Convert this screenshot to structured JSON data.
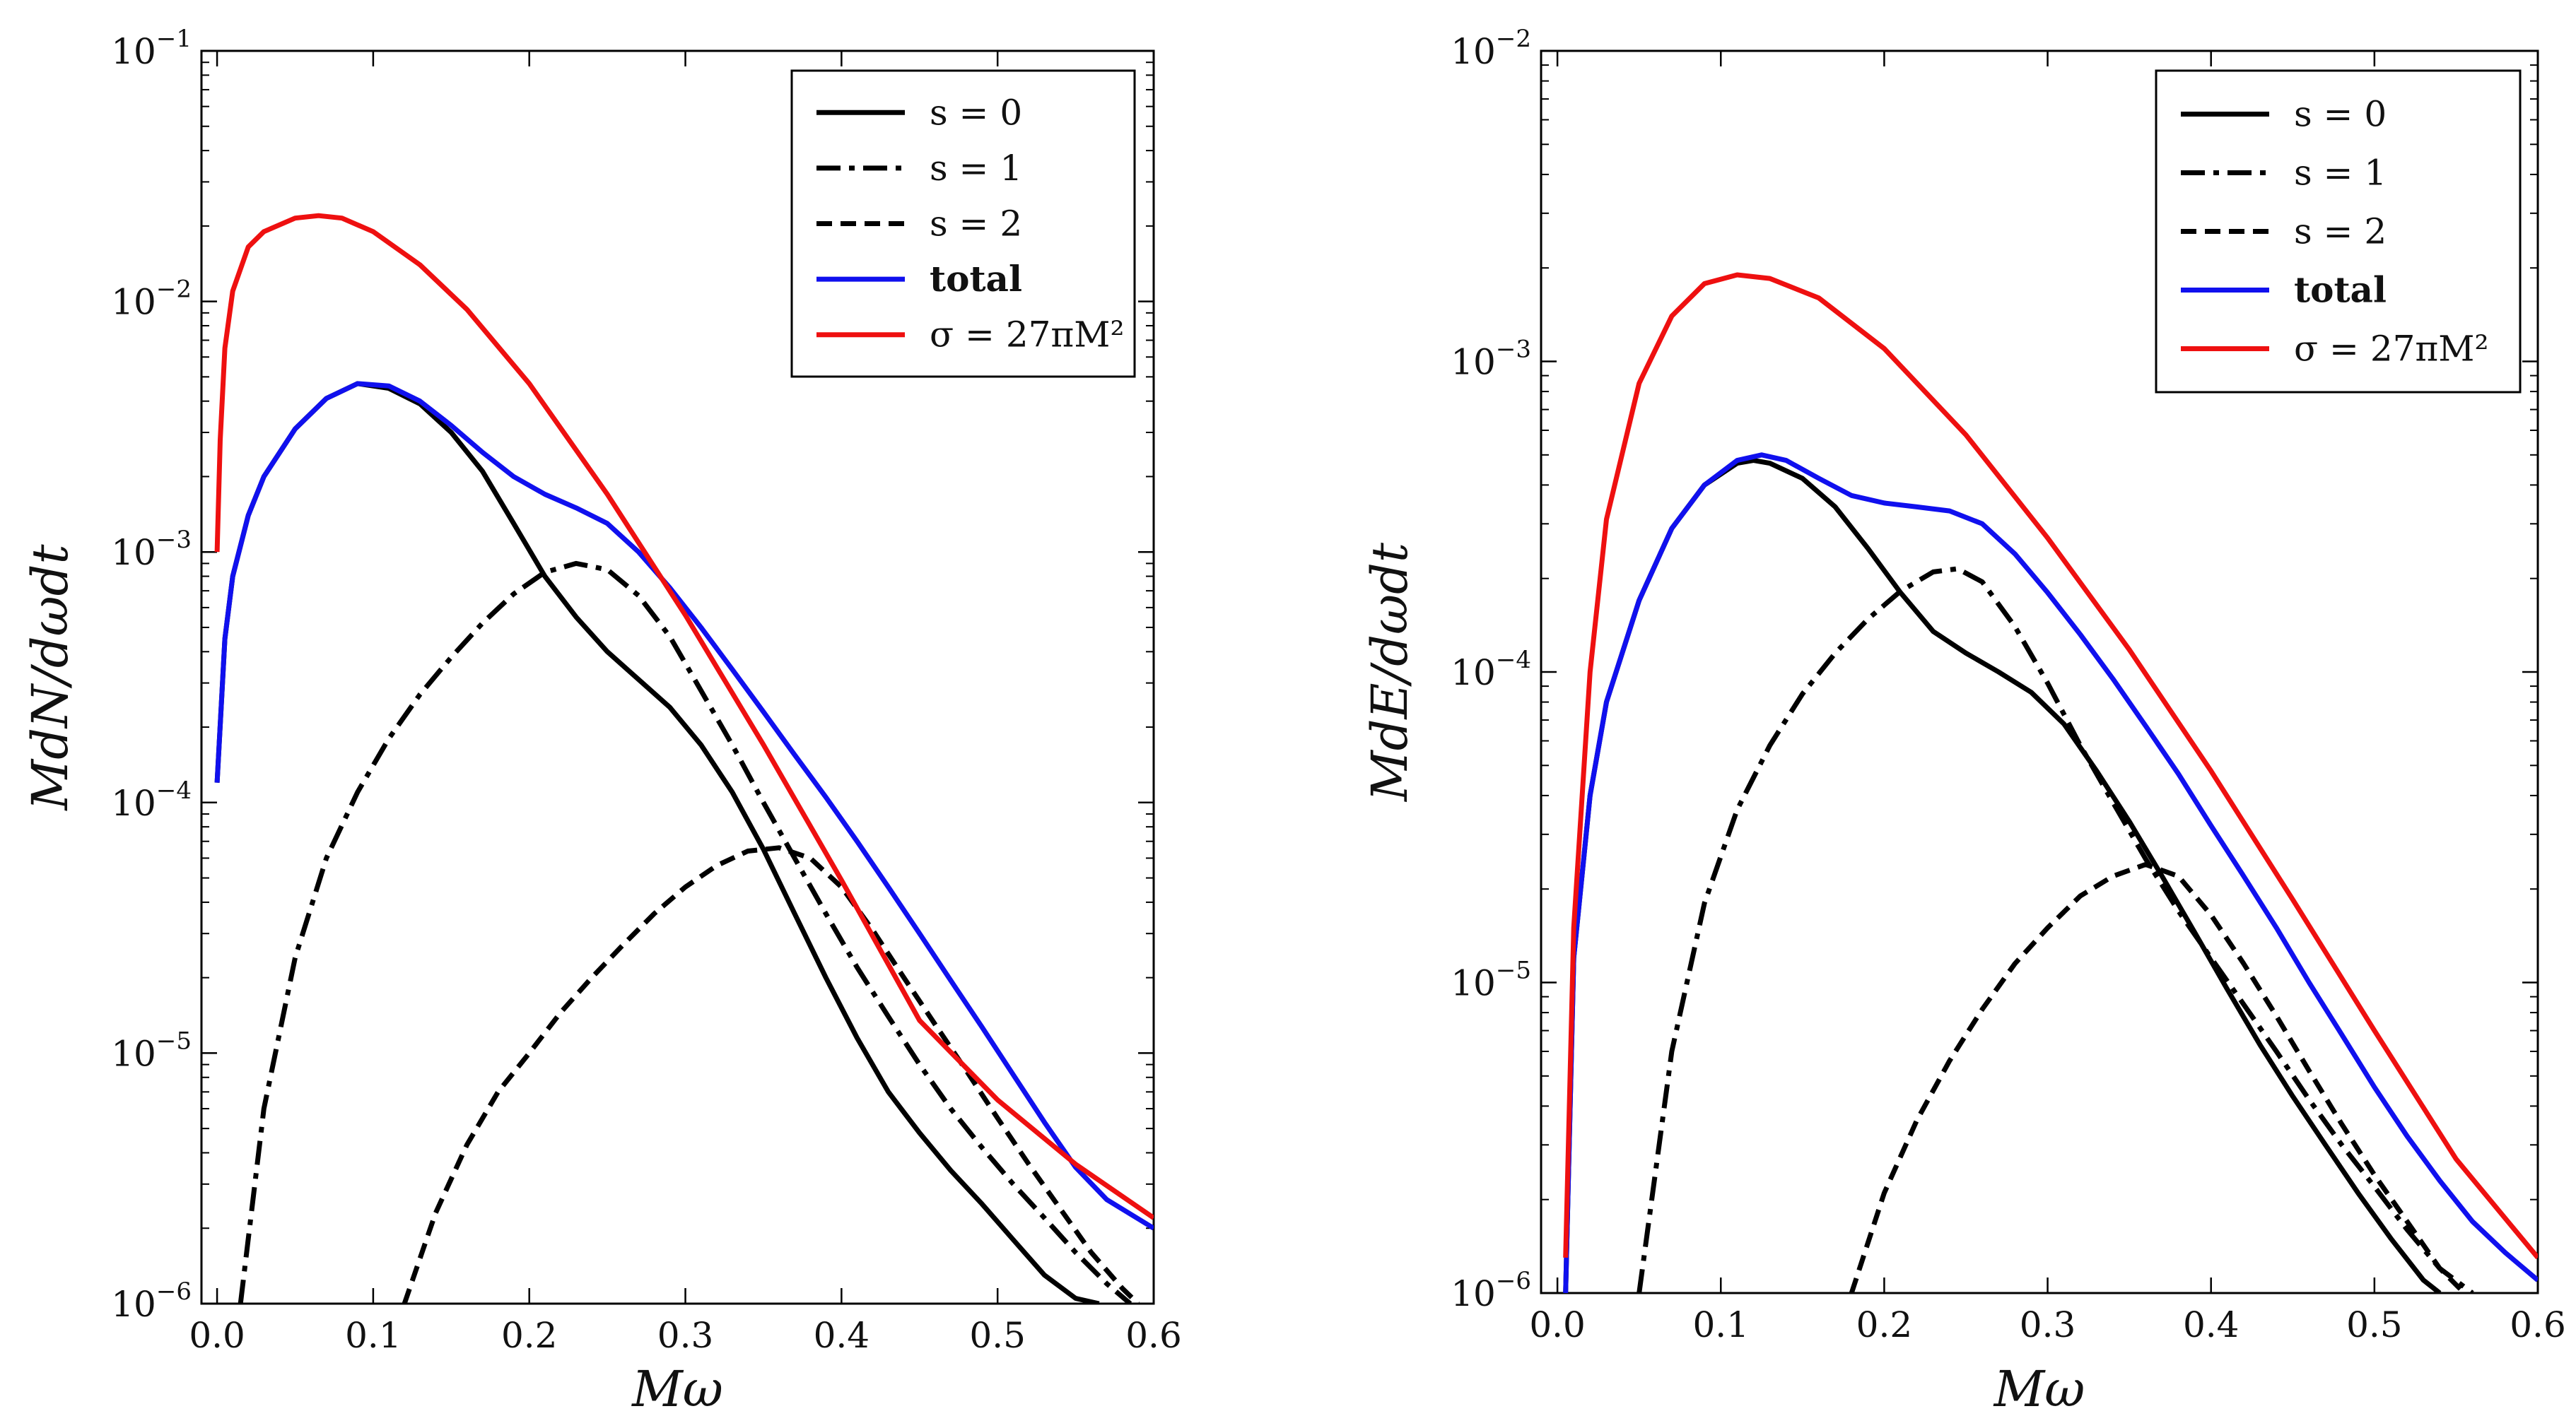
{
  "chart_data": [
    {
      "type": "line",
      "panel": "left",
      "title": "",
      "xlabel": "Mω",
      "ylabel": "M dN/dωdt",
      "yscale": "log",
      "xlim": [
        -0.01,
        0.6
      ],
      "ylim": [
        1e-06,
        0.1
      ],
      "xticks": [
        {
          "value": 0.0,
          "label": "0.0"
        },
        {
          "value": 0.1,
          "label": "0.1"
        },
        {
          "value": 0.2,
          "label": "0.2"
        },
        {
          "value": 0.3,
          "label": "0.3"
        },
        {
          "value": 0.4,
          "label": "0.4"
        },
        {
          "value": 0.5,
          "label": "0.5"
        },
        {
          "value": 0.6,
          "label": "0.6"
        }
      ],
      "yticks": [
        {
          "value": 1e-06,
          "base": "10",
          "exp": "−6"
        },
        {
          "value": 1e-05,
          "base": "10",
          "exp": "−5"
        },
        {
          "value": 0.0001,
          "base": "10",
          "exp": "−4"
        },
        {
          "value": 0.001,
          "base": "10",
          "exp": "−3"
        },
        {
          "value": 0.01,
          "base": "10",
          "exp": "−2"
        },
        {
          "value": 0.1,
          "base": "10",
          "exp": "−1"
        }
      ],
      "legend_position": "top-right",
      "series": [
        {
          "name": "s = 0",
          "style": "solid",
          "color": "#000000",
          "x": [
            0.0,
            0.005,
            0.01,
            0.02,
            0.03,
            0.05,
            0.07,
            0.09,
            0.11,
            0.13,
            0.15,
            0.17,
            0.19,
            0.21,
            0.23,
            0.25,
            0.27,
            0.29,
            0.31,
            0.33,
            0.35,
            0.37,
            0.39,
            0.41,
            0.43,
            0.45,
            0.47,
            0.49,
            0.51,
            0.53,
            0.55,
            0.565
          ],
          "y": [
            0.00012,
            0.00045,
            0.0008,
            0.0014,
            0.002,
            0.0031,
            0.0041,
            0.0047,
            0.0045,
            0.0039,
            0.003,
            0.0021,
            0.0013,
            0.0008,
            0.00055,
            0.0004,
            0.00031,
            0.00024,
            0.00017,
            0.00011,
            6.5e-05,
            3.6e-05,
            2e-05,
            1.15e-05,
            7e-06,
            4.8e-06,
            3.4e-06,
            2.5e-06,
            1.8e-06,
            1.3e-06,
            1.05e-06,
            1e-06
          ]
        },
        {
          "name": "s = 1",
          "style": "dashdot",
          "color": "#000000",
          "x": [
            0.015,
            0.03,
            0.05,
            0.07,
            0.09,
            0.11,
            0.13,
            0.15,
            0.17,
            0.19,
            0.21,
            0.23,
            0.25,
            0.27,
            0.29,
            0.31,
            0.33,
            0.35,
            0.37,
            0.39,
            0.41,
            0.43,
            0.45,
            0.47,
            0.49,
            0.51,
            0.53,
            0.55,
            0.57,
            0.585
          ],
          "y": [
            1e-06,
            6e-06,
            2.4e-05,
            6e-05,
            0.00011,
            0.00018,
            0.00027,
            0.00038,
            0.00052,
            0.00068,
            0.00083,
            0.0009,
            0.00085,
            0.00067,
            0.00046,
            0.00028,
            0.00017,
            0.0001,
            6e-05,
            3.6e-05,
            2.2e-05,
            1.4e-05,
            9e-06,
            6e-06,
            4.2e-06,
            3e-06,
            2.2e-06,
            1.6e-06,
            1.2e-06,
            1e-06
          ]
        },
        {
          "name": "s = 2",
          "style": "dashed",
          "color": "#000000",
          "x": [
            0.12,
            0.14,
            0.16,
            0.18,
            0.2,
            0.22,
            0.24,
            0.26,
            0.28,
            0.3,
            0.32,
            0.34,
            0.36,
            0.38,
            0.4,
            0.42,
            0.44,
            0.46,
            0.48,
            0.5,
            0.52,
            0.54,
            0.56,
            0.58,
            0.59
          ],
          "y": [
            1e-06,
            2.3e-06,
            4.3e-06,
            7e-06,
            1e-05,
            1.45e-05,
            2e-05,
            2.7e-05,
            3.6e-05,
            4.6e-05,
            5.6e-05,
            6.4e-05,
            6.6e-05,
            6e-05,
            4.6e-05,
            3.1e-05,
            2e-05,
            1.3e-05,
            8.5e-06,
            5.5e-06,
            3.6e-06,
            2.4e-06,
            1.6e-06,
            1.15e-06,
            1e-06
          ]
        },
        {
          "name": "total",
          "style": "solid",
          "color": "#1010ee",
          "x": [
            0.0,
            0.005,
            0.01,
            0.02,
            0.03,
            0.05,
            0.07,
            0.09,
            0.11,
            0.13,
            0.15,
            0.17,
            0.19,
            0.21,
            0.23,
            0.25,
            0.27,
            0.29,
            0.31,
            0.33,
            0.35,
            0.37,
            0.39,
            0.41,
            0.43,
            0.45,
            0.47,
            0.49,
            0.51,
            0.53,
            0.55,
            0.57,
            0.6
          ],
          "y": [
            0.00012,
            0.00045,
            0.0008,
            0.0014,
            0.002,
            0.0031,
            0.0041,
            0.0047,
            0.0046,
            0.004,
            0.0032,
            0.0025,
            0.002,
            0.0017,
            0.0015,
            0.0013,
            0.001,
            0.00072,
            0.0005,
            0.00034,
            0.00023,
            0.000155,
            0.000105,
            7e-05,
            4.6e-05,
            3e-05,
            1.95e-05,
            1.27e-05,
            8.2e-06,
            5.3e-06,
            3.5e-06,
            2.6e-06,
            2e-06
          ]
        },
        {
          "name": "σ = 27πM²",
          "style": "solid",
          "color": "#ee1010",
          "x": [
            0.0,
            0.002,
            0.005,
            0.01,
            0.02,
            0.03,
            0.05,
            0.065,
            0.08,
            0.1,
            0.13,
            0.16,
            0.2,
            0.25,
            0.3,
            0.35,
            0.4,
            0.45,
            0.5,
            0.55,
            0.6
          ],
          "y": [
            0.001,
            0.0028,
            0.0065,
            0.011,
            0.0165,
            0.019,
            0.0215,
            0.022,
            0.0215,
            0.019,
            0.014,
            0.0093,
            0.0047,
            0.0017,
            0.00056,
            0.00017,
            4.9e-05,
            1.35e-05,
            6.5e-06,
            3.6e-06,
            2.2e-06
          ]
        }
      ]
    },
    {
      "type": "line",
      "panel": "right",
      "title": "",
      "xlabel": "Mω",
      "ylabel": "M dE/dωdt",
      "yscale": "log",
      "xlim": [
        -0.01,
        0.6
      ],
      "ylim": [
        1e-06,
        0.01
      ],
      "xticks": [
        {
          "value": 0.0,
          "label": "0.0"
        },
        {
          "value": 0.1,
          "label": "0.1"
        },
        {
          "value": 0.2,
          "label": "0.2"
        },
        {
          "value": 0.3,
          "label": "0.3"
        },
        {
          "value": 0.4,
          "label": "0.4"
        },
        {
          "value": 0.5,
          "label": "0.5"
        },
        {
          "value": 0.6,
          "label": "0.6"
        }
      ],
      "yticks": [
        {
          "value": 1e-06,
          "base": "10",
          "exp": "−6"
        },
        {
          "value": 1e-05,
          "base": "10",
          "exp": "−5"
        },
        {
          "value": 0.0001,
          "base": "10",
          "exp": "−4"
        },
        {
          "value": 0.001,
          "base": "10",
          "exp": "−3"
        },
        {
          "value": 0.01,
          "base": "10",
          "exp": "−2"
        }
      ],
      "legend_position": "top-right",
      "series": [
        {
          "name": "s = 0",
          "style": "solid",
          "color": "#000000",
          "x": [
            0.005,
            0.01,
            0.02,
            0.03,
            0.05,
            0.07,
            0.09,
            0.11,
            0.12,
            0.13,
            0.15,
            0.17,
            0.19,
            0.21,
            0.23,
            0.25,
            0.27,
            0.29,
            0.31,
            0.33,
            0.35,
            0.37,
            0.39,
            0.41,
            0.43,
            0.45,
            0.47,
            0.49,
            0.51,
            0.53,
            0.54
          ],
          "y": [
            1e-06,
            1.2e-05,
            4e-05,
            8e-05,
            0.00017,
            0.00029,
            0.0004,
            0.00047,
            0.00048,
            0.00047,
            0.00042,
            0.00034,
            0.00025,
            0.00018,
            0.000135,
            0.000115,
            0.0001,
            8.6e-05,
            6.8e-05,
            4.8e-05,
            3.3e-05,
            2.2e-05,
            1.45e-05,
            9.5e-06,
            6.3e-06,
            4.3e-06,
            3e-06,
            2.1e-06,
            1.5e-06,
            1.1e-06,
            1e-06
          ]
        },
        {
          "name": "s = 1",
          "style": "dashdot",
          "color": "#000000",
          "x": [
            0.05,
            0.07,
            0.09,
            0.11,
            0.13,
            0.15,
            0.17,
            0.19,
            0.21,
            0.23,
            0.245,
            0.26,
            0.28,
            0.3,
            0.32,
            0.34,
            0.36,
            0.38,
            0.4,
            0.42,
            0.44,
            0.46,
            0.48,
            0.5,
            0.52,
            0.54,
            0.56
          ],
          "y": [
            1e-06,
            6e-06,
            1.8e-05,
            3.6e-05,
            5.8e-05,
            8.5e-05,
            0.000115,
            0.000148,
            0.000182,
            0.00021,
            0.000215,
            0.000195,
            0.00014,
            9.2e-05,
            5.8e-05,
            3.8e-05,
            2.5e-05,
            1.7e-05,
            1.2e-05,
            8.5e-06,
            6e-06,
            4.2e-06,
            3e-06,
            2.2e-06,
            1.6e-06,
            1.2e-06,
            1e-06
          ]
        },
        {
          "name": "s = 2",
          "style": "dashed",
          "color": "#000000",
          "x": [
            0.18,
            0.2,
            0.22,
            0.24,
            0.26,
            0.28,
            0.3,
            0.32,
            0.34,
            0.36,
            0.38,
            0.4,
            0.42,
            0.44,
            0.46,
            0.48,
            0.5,
            0.52,
            0.54,
            0.555
          ],
          "y": [
            1e-06,
            2.1e-06,
            3.6e-06,
            5.6e-06,
            8.2e-06,
            1.15e-05,
            1.5e-05,
            1.9e-05,
            2.2e-05,
            2.4e-05,
            2.2e-05,
            1.65e-05,
            1.15e-05,
            7.8e-06,
            5.2e-06,
            3.5e-06,
            2.4e-06,
            1.7e-06,
            1.2e-06,
            1e-06
          ]
        },
        {
          "name": "total",
          "style": "solid",
          "color": "#1010ee",
          "x": [
            0.005,
            0.01,
            0.02,
            0.03,
            0.05,
            0.07,
            0.09,
            0.11,
            0.125,
            0.14,
            0.16,
            0.18,
            0.2,
            0.22,
            0.24,
            0.26,
            0.28,
            0.3,
            0.32,
            0.34,
            0.36,
            0.38,
            0.4,
            0.42,
            0.44,
            0.46,
            0.48,
            0.5,
            0.52,
            0.54,
            0.56,
            0.58,
            0.6
          ],
          "y": [
            1e-06,
            1.2e-05,
            4e-05,
            8e-05,
            0.00017,
            0.00029,
            0.0004,
            0.00048,
            0.0005,
            0.00048,
            0.00042,
            0.00037,
            0.00035,
            0.00034,
            0.00033,
            0.0003,
            0.00024,
            0.00018,
            0.000132,
            9.5e-05,
            6.7e-05,
            4.7e-05,
            3.2e-05,
            2.2e-05,
            1.5e-05,
            1e-05,
            6.8e-06,
            4.6e-06,
            3.2e-06,
            2.3e-06,
            1.7e-06,
            1.35e-06,
            1.1e-06
          ]
        },
        {
          "name": "σ = 27πM²",
          "style": "solid",
          "color": "#ee1010",
          "x": [
            0.005,
            0.01,
            0.02,
            0.03,
            0.05,
            0.07,
            0.09,
            0.11,
            0.13,
            0.16,
            0.2,
            0.25,
            0.3,
            0.35,
            0.4,
            0.45,
            0.5,
            0.55,
            0.6
          ],
          "y": [
            1.3e-06,
            1.5e-05,
            0.0001,
            0.00031,
            0.00085,
            0.0014,
            0.00178,
            0.0019,
            0.00185,
            0.0016,
            0.0011,
            0.00058,
            0.00027,
            0.000118,
            4.8e-05,
            1.85e-05,
            7e-06,
            2.7e-06,
            1.3e-06
          ]
        }
      ]
    }
  ],
  "panels": {
    "left": {
      "ylabel_italic": "MdN/dωdt",
      "xlabel_italic": "Mω",
      "legend": [
        {
          "label": "s = 0",
          "style": "solid",
          "color": "#000000"
        },
        {
          "label": "s = 1",
          "style": "dashdot",
          "color": "#000000"
        },
        {
          "label": "s = 2",
          "style": "dashed",
          "color": "#000000"
        },
        {
          "label": "total",
          "style": "solid",
          "color": "#1010ee"
        },
        {
          "label": "σ = 27πM²",
          "style": "solid",
          "color": "#ee1010"
        }
      ]
    },
    "right": {
      "ylabel_italic": "MdE/dωdt",
      "xlabel_italic": "Mω",
      "legend": [
        {
          "label": "s = 0",
          "style": "solid",
          "color": "#000000"
        },
        {
          "label": "s = 1",
          "style": "dashdot",
          "color": "#000000"
        },
        {
          "label": "s = 2",
          "style": "dashed",
          "color": "#000000"
        },
        {
          "label": "total",
          "style": "solid",
          "color": "#1010ee"
        },
        {
          "label": "σ = 27πM²",
          "style": "solid",
          "color": "#ee1010"
        }
      ]
    }
  }
}
